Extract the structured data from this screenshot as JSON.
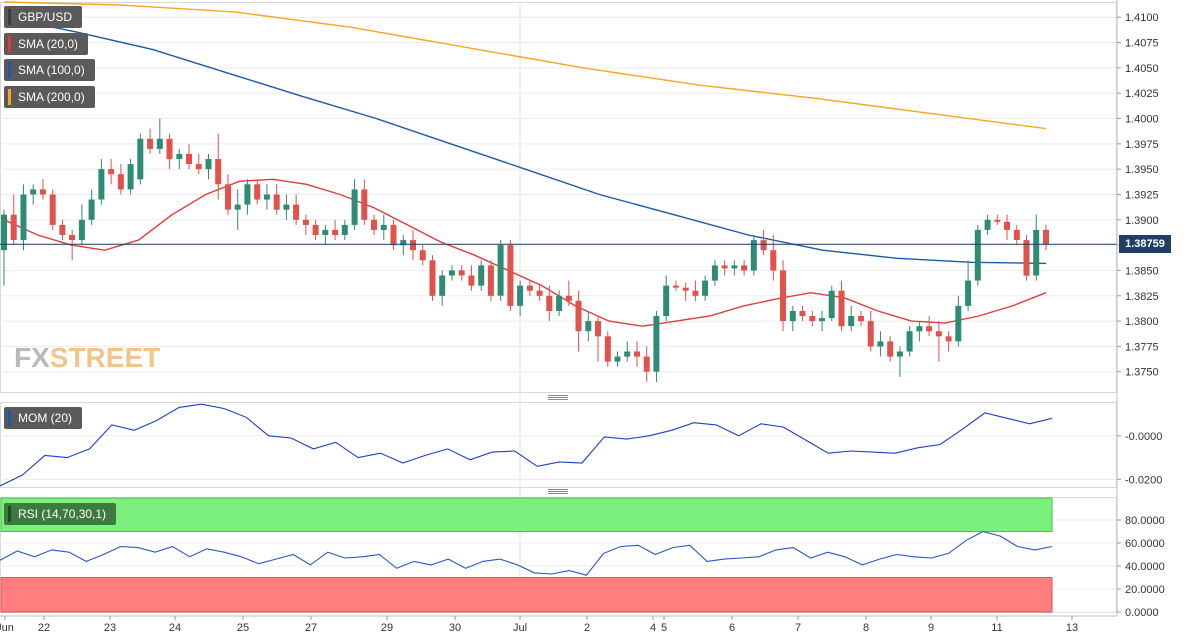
{
  "chart_data": [
    {
      "type": "candlestick",
      "legend": [
        {
          "label": "GBP/USD",
          "color": "#5a5a5a"
        },
        {
          "label": "SMA (20,0)",
          "color": "#e23b3b"
        },
        {
          "label": "SMA (100,0)",
          "color": "#1a5aa8"
        },
        {
          "label": "SMA (200,0)",
          "color": "#f5a623"
        }
      ],
      "ylim": [
        1.373,
        1.4115
      ],
      "y_ticks": [
        "1.4100",
        "1.4075",
        "1.4050",
        "1.4025",
        "1.4000",
        "1.3975",
        "1.3950",
        "1.3925",
        "1.3900",
        "1.3875",
        "1.3850",
        "1.3825",
        "1.3800",
        "1.3775",
        "1.3750"
      ],
      "current_price": "1.38759",
      "x_labels": [
        "Jun",
        "22",
        "23",
        "24",
        "25",
        "27",
        "29",
        "30",
        "Jul",
        "2",
        "4",
        "5",
        "6",
        "7",
        "8",
        "9",
        "11",
        "13"
      ],
      "up_color": "#2f8c74",
      "down_color": "#e0524a",
      "candles": [
        [
          1.387,
          1.391,
          1.3835,
          1.3905
        ],
        [
          1.3905,
          1.3925,
          1.3875,
          1.388
        ],
        [
          1.388,
          1.3935,
          1.387,
          1.3925
        ],
        [
          1.3925,
          1.3935,
          1.3915,
          1.393
        ],
        [
          1.393,
          1.394,
          1.392,
          1.3925
        ],
        [
          1.3925,
          1.393,
          1.389,
          1.3895
        ],
        [
          1.3895,
          1.39,
          1.388,
          1.3885
        ],
        [
          1.3885,
          1.389,
          1.386,
          1.388
        ],
        [
          1.388,
          1.3915,
          1.3875,
          1.39
        ],
        [
          1.39,
          1.393,
          1.3895,
          1.392
        ],
        [
          1.392,
          1.396,
          1.3915,
          1.395
        ],
        [
          1.395,
          1.396,
          1.3935,
          1.3945
        ],
        [
          1.3945,
          1.3955,
          1.3925,
          1.393
        ],
        [
          1.393,
          1.396,
          1.3925,
          1.3955
        ],
        [
          1.394,
          1.3985,
          1.3935,
          1.398
        ],
        [
          1.398,
          1.399,
          1.3965,
          1.397
        ],
        [
          1.397,
          1.4,
          1.3965,
          1.398
        ],
        [
          1.398,
          1.3985,
          1.395,
          1.396
        ],
        [
          1.396,
          1.397,
          1.395,
          1.3965
        ],
        [
          1.3965,
          1.3975,
          1.395,
          1.3955
        ],
        [
          1.3955,
          1.3965,
          1.3945,
          1.395
        ],
        [
          1.395,
          1.3965,
          1.394,
          1.396
        ],
        [
          1.396,
          1.3985,
          1.392,
          1.3935
        ],
        [
          1.3935,
          1.3945,
          1.3905,
          1.391
        ],
        [
          1.391,
          1.393,
          1.389,
          1.3915
        ],
        [
          1.3915,
          1.394,
          1.3905,
          1.3935
        ],
        [
          1.3935,
          1.394,
          1.3915,
          1.392
        ],
        [
          1.392,
          1.3935,
          1.391,
          1.3925
        ],
        [
          1.3925,
          1.3935,
          1.3905,
          1.391
        ],
        [
          1.391,
          1.3925,
          1.39,
          1.3915
        ],
        [
          1.3915,
          1.3925,
          1.3895,
          1.39
        ],
        [
          1.39,
          1.3905,
          1.3885,
          1.3895
        ],
        [
          1.3895,
          1.39,
          1.388,
          1.3885
        ],
        [
          1.3885,
          1.3895,
          1.3875,
          1.389
        ],
        [
          1.389,
          1.39,
          1.388,
          1.3885
        ],
        [
          1.3885,
          1.39,
          1.388,
          1.3895
        ],
        [
          1.3895,
          1.394,
          1.389,
          1.393
        ],
        [
          1.393,
          1.394,
          1.3895,
          1.39
        ],
        [
          1.39,
          1.3905,
          1.3885,
          1.389
        ],
        [
          1.389,
          1.3905,
          1.388,
          1.3895
        ],
        [
          1.3895,
          1.39,
          1.387,
          1.3875
        ],
        [
          1.3875,
          1.3885,
          1.3865,
          1.388
        ],
        [
          1.388,
          1.389,
          1.386,
          1.387
        ],
        [
          1.387,
          1.3875,
          1.3855,
          1.386
        ],
        [
          1.386,
          1.3865,
          1.382,
          1.3825
        ],
        [
          1.3825,
          1.385,
          1.3815,
          1.3845
        ],
        [
          1.3845,
          1.3855,
          1.384,
          1.385
        ],
        [
          1.385,
          1.3855,
          1.384,
          1.3845
        ],
        [
          1.3845,
          1.3855,
          1.383,
          1.3835
        ],
        [
          1.3835,
          1.386,
          1.383,
          1.3855
        ],
        [
          1.3855,
          1.386,
          1.382,
          1.3825
        ],
        [
          1.3825,
          1.388,
          1.382,
          1.3875
        ],
        [
          1.3875,
          1.388,
          1.381,
          1.3815
        ],
        [
          1.3815,
          1.384,
          1.3805,
          1.3835
        ],
        [
          1.3835,
          1.384,
          1.3825,
          1.383
        ],
        [
          1.383,
          1.3835,
          1.382,
          1.3825
        ],
        [
          1.3825,
          1.3835,
          1.38,
          1.381
        ],
        [
          1.381,
          1.383,
          1.3805,
          1.3825
        ],
        [
          1.3825,
          1.384,
          1.3815,
          1.382
        ],
        [
          1.382,
          1.383,
          1.377,
          1.379
        ],
        [
          1.379,
          1.381,
          1.378,
          1.38
        ],
        [
          1.38,
          1.3805,
          1.376,
          1.3785
        ],
        [
          1.3785,
          1.379,
          1.3755,
          1.376
        ],
        [
          1.376,
          1.377,
          1.3755,
          1.3765
        ],
        [
          1.3765,
          1.378,
          1.376,
          1.377
        ],
        [
          1.377,
          1.378,
          1.3755,
          1.3765
        ],
        [
          1.3765,
          1.3775,
          1.374,
          1.375
        ],
        [
          1.375,
          1.381,
          1.374,
          1.3805
        ],
        [
          1.3805,
          1.3845,
          1.38,
          1.3835
        ],
        [
          1.3835,
          1.384,
          1.383,
          1.3833
        ],
        [
          1.3833,
          1.3838,
          1.382,
          1.383
        ],
        [
          1.383,
          1.384,
          1.382,
          1.3825
        ],
        [
          1.3825,
          1.3845,
          1.382,
          1.384
        ],
        [
          1.384,
          1.386,
          1.3835,
          1.3855
        ],
        [
          1.3855,
          1.386,
          1.3845,
          1.3852
        ],
        [
          1.3852,
          1.386,
          1.3845,
          1.3855
        ],
        [
          1.3855,
          1.386,
          1.3845,
          1.385
        ],
        [
          1.385,
          1.3885,
          1.3845,
          1.388
        ],
        [
          1.388,
          1.389,
          1.3865,
          1.387
        ],
        [
          1.387,
          1.3885,
          1.384,
          1.385
        ],
        [
          1.385,
          1.386,
          1.379,
          1.38
        ],
        [
          1.38,
          1.3815,
          1.379,
          1.381
        ],
        [
          1.381,
          1.3815,
          1.38,
          1.3805
        ],
        [
          1.3805,
          1.381,
          1.3795,
          1.38
        ],
        [
          1.38,
          1.381,
          1.379,
          1.3803
        ],
        [
          1.3803,
          1.3835,
          1.38,
          1.383
        ],
        [
          1.383,
          1.384,
          1.379,
          1.3795
        ],
        [
          1.3795,
          1.3815,
          1.379,
          1.3805
        ],
        [
          1.3805,
          1.381,
          1.3795,
          1.38
        ],
        [
          1.38,
          1.381,
          1.377,
          1.3775
        ],
        [
          1.3775,
          1.379,
          1.3765,
          1.378
        ],
        [
          1.378,
          1.3785,
          1.376,
          1.3765
        ],
        [
          1.3765,
          1.3775,
          1.3745,
          1.377
        ],
        [
          1.377,
          1.3795,
          1.3765,
          1.379
        ],
        [
          1.379,
          1.38,
          1.378,
          1.3795
        ],
        [
          1.3795,
          1.3805,
          1.3785,
          1.379
        ],
        [
          1.379,
          1.38,
          1.376,
          1.3785
        ],
        [
          1.3785,
          1.379,
          1.377,
          1.378
        ],
        [
          1.378,
          1.3825,
          1.3775,
          1.3815
        ],
        [
          1.3815,
          1.386,
          1.381,
          1.384
        ],
        [
          1.384,
          1.3895,
          1.3835,
          1.389
        ],
        [
          1.389,
          1.3905,
          1.3885,
          1.39
        ],
        [
          1.39,
          1.3905,
          1.3895,
          1.3898
        ],
        [
          1.3898,
          1.3905,
          1.388,
          1.389
        ],
        [
          1.389,
          1.3895,
          1.3875,
          1.388
        ],
        [
          1.388,
          1.3885,
          1.384,
          1.3845
        ],
        [
          1.3845,
          1.3905,
          1.384,
          1.389
        ],
        [
          1.389,
          1.3895,
          1.387,
          1.3876
        ]
      ],
      "sma20": [
        1.39,
        1.3885,
        1.3875,
        1.387,
        1.388,
        1.3905,
        1.3925,
        1.3938,
        1.394,
        1.3935,
        1.3925,
        1.3912,
        1.3895,
        1.3878,
        1.3865,
        1.385,
        1.3835,
        1.3815,
        1.38,
        1.3795,
        1.38,
        1.3805,
        1.3815,
        1.3822,
        1.3828,
        1.3823,
        1.381,
        1.38,
        1.3798,
        1.3805,
        1.3815,
        1.3828
      ],
      "sma100": [
        1.41,
        1.4085,
        1.4068,
        1.4045,
        1.4022,
        1.4,
        1.3975,
        1.395,
        1.3925,
        1.3905,
        1.3885,
        1.387,
        1.3862,
        1.3858,
        1.3857
      ],
      "sma200": [
        1.4115,
        1.4112,
        1.4105,
        1.409,
        1.407,
        1.405,
        1.4033,
        1.402,
        1.4005,
        1.399
      ],
      "sma_x": "even across candles"
    },
    {
      "type": "line",
      "legend": [
        {
          "label": "MOM (20)",
          "color": "#1a5aa8"
        }
      ],
      "ylim": [
        -0.0235,
        0.0155
      ],
      "y_ticks": [
        "-0.0000",
        "-0.0200"
      ],
      "values": [
        -0.023,
        -0.018,
        -0.009,
        -0.01,
        -0.006,
        0.005,
        0.0025,
        0.007,
        0.013,
        0.0145,
        0.0125,
        0.0085,
        0.0,
        -0.001,
        -0.006,
        -0.003,
        -0.01,
        -0.008,
        -0.0125,
        -0.009,
        -0.006,
        -0.011,
        -0.0075,
        -0.007,
        -0.014,
        -0.012,
        -0.0125,
        -0.0005,
        -0.0015,
        0.0,
        0.0025,
        0.006,
        0.005,
        0.0,
        0.0055,
        0.004,
        -0.002,
        -0.008,
        -0.007,
        -0.0075,
        -0.008,
        -0.0055,
        -0.004,
        0.003,
        0.0105,
        0.008,
        0.0055,
        0.008
      ]
    },
    {
      "type": "line",
      "legend": [
        {
          "label": "RSI (14,70,30,1)",
          "color": "#2a7d2a"
        }
      ],
      "ylim": [
        0,
        100
      ],
      "y_ticks": [
        "80.0000",
        "60.0000",
        "40.0000",
        "20.0000",
        "0.0000"
      ],
      "overbought": 70,
      "oversold": 30,
      "values": [
        45,
        53,
        48,
        54,
        52,
        44,
        50,
        57,
        56,
        52,
        57,
        48,
        55,
        52,
        48,
        42,
        46,
        50,
        41,
        52,
        47,
        48,
        50,
        38,
        44,
        41,
        46,
        38,
        44,
        46,
        41,
        34,
        33,
        36,
        32,
        51,
        57,
        58,
        50,
        56,
        58,
        44,
        46,
        47,
        48,
        54,
        56,
        47,
        52,
        48,
        41,
        46,
        50,
        48,
        47,
        51,
        62,
        70,
        66,
        57,
        54,
        57
      ]
    }
  ]
}
